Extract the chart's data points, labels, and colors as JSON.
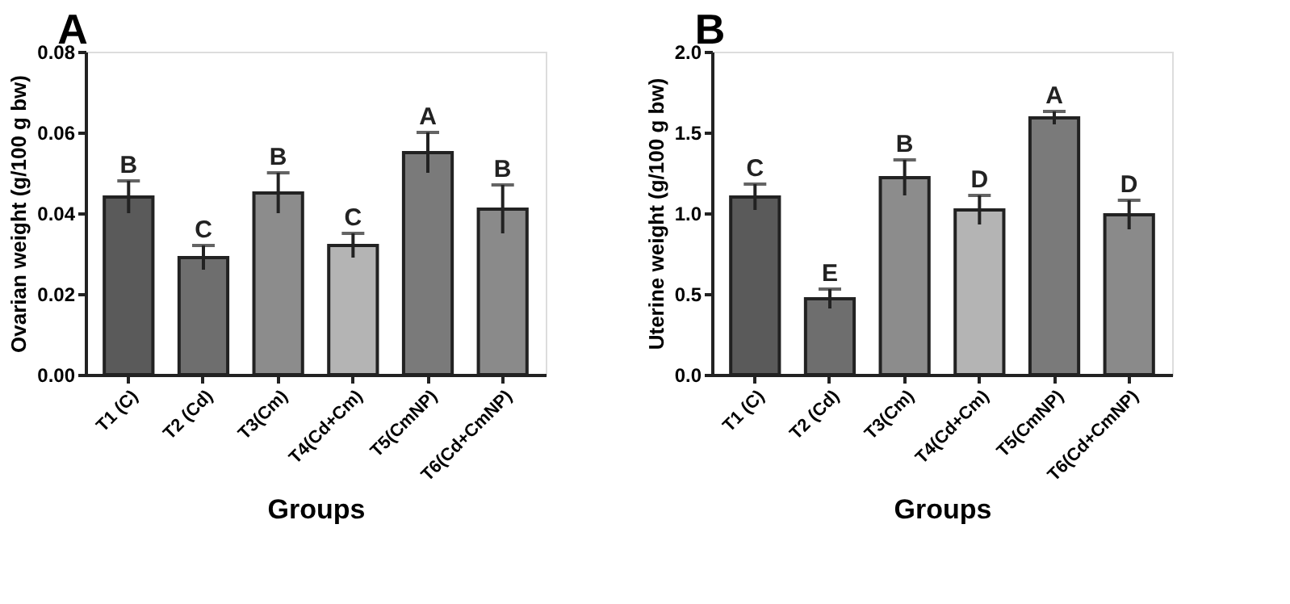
{
  "chart_data": [
    {
      "type": "bar",
      "title": "A",
      "xlabel": "Groups",
      "ylabel": "Ovarian weight (g/100 g bw)",
      "categories": [
        "T1 (C)",
        "T2 (Cd)",
        "T3(Cm)",
        "T4(Cd+Cm)",
        "T5(CmNP)",
        "T6(Cd+CmNP)"
      ],
      "values": [
        0.044,
        0.029,
        0.045,
        0.032,
        0.055,
        0.041
      ],
      "errors": [
        0.004,
        0.003,
        0.005,
        0.003,
        0.005,
        0.006
      ],
      "colors": [
        "#5a5a5a",
        "#6e6e6e",
        "#8c8c8c",
        "#b4b4b4",
        "#7a7a7a",
        "#8a8a8a"
      ],
      "ylim": [
        0,
        0.08
      ],
      "yticks": [
        {
          "value": 0,
          "label": "0.00"
        },
        {
          "value": 0.02,
          "label": "0.02"
        },
        {
          "value": 0.04,
          "label": "0.04"
        },
        {
          "value": 0.06,
          "label": "0.06"
        },
        {
          "value": 0.08,
          "label": "0.08"
        }
      ],
      "grid": false,
      "legend": false,
      "annotations": [
        {
          "text": "B",
          "x": "T1 (C)",
          "y": 0.048
        },
        {
          "text": "C",
          "x": "T2 (Cd)",
          "y": 0.032
        },
        {
          "text": "B",
          "x": "T3(Cm)",
          "y": 0.05
        },
        {
          "text": "C",
          "x": "T4(Cd+Cm)",
          "y": 0.035
        },
        {
          "text": "A",
          "x": "T5(CmNP)",
          "y": 0.06
        },
        {
          "text": "B",
          "x": "T6(Cd+CmNP)",
          "y": 0.047
        }
      ]
    },
    {
      "type": "bar",
      "title": "B",
      "xlabel": "Groups",
      "ylabel": "Uterine weight (g/100 g bw)",
      "categories": [
        "T1 (C)",
        "T2 (Cd)",
        "T3(Cm)",
        "T4(Cd+Cm)",
        "T5(CmNP)",
        "T6(Cd+CmNP)"
      ],
      "values": [
        1.1,
        0.47,
        1.22,
        1.02,
        1.59,
        0.99
      ],
      "errors": [
        0.08,
        0.06,
        0.11,
        0.09,
        0.04,
        0.09
      ],
      "colors": [
        "#5a5a5a",
        "#6e6e6e",
        "#8c8c8c",
        "#b4b4b4",
        "#7a7a7a",
        "#8a8a8a"
      ],
      "ylim": [
        0,
        2.0
      ],
      "yticks": [
        {
          "value": 0,
          "label": "0.0"
        },
        {
          "value": 0.5,
          "label": "0.5"
        },
        {
          "value": 1.0,
          "label": "1.0"
        },
        {
          "value": 1.5,
          "label": "1.5"
        },
        {
          "value": 2.0,
          "label": "2.0"
        }
      ],
      "grid": false,
      "legend": false,
      "annotations": [
        {
          "text": "C",
          "x": "T1 (C)",
          "y": 1.18
        },
        {
          "text": "E",
          "x": "T2 (Cd)",
          "y": 0.53
        },
        {
          "text": "B",
          "x": "T3(Cm)",
          "y": 1.33
        },
        {
          "text": "D",
          "x": "T4(Cd+Cm)",
          "y": 1.11
        },
        {
          "text": "A",
          "x": "T5(CmNP)",
          "y": 1.63
        },
        {
          "text": "D",
          "x": "T6(Cd+CmNP)",
          "y": 1.08
        }
      ]
    }
  ]
}
